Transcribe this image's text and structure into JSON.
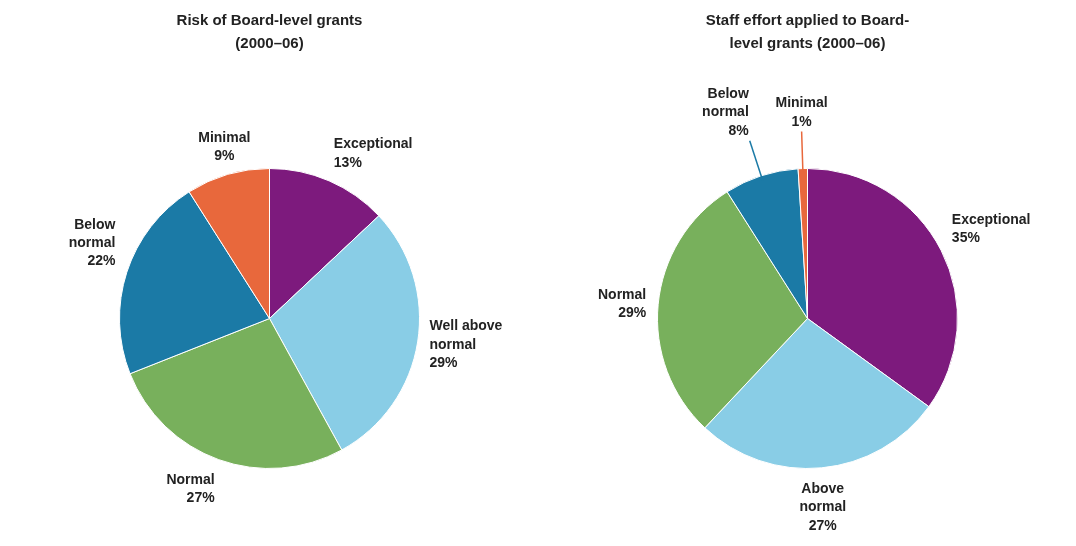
{
  "chart_data": [
    {
      "type": "pie",
      "title": "Risk of Board-level grants\n(2000–06)",
      "categories": [
        "Exceptional",
        "Well above normal",
        "Normal",
        "Below normal",
        "Minimal"
      ],
      "values": [
        13,
        29,
        27,
        22,
        9
      ],
      "colors": [
        "#7d1a7d",
        "#89cde6",
        "#78b05c",
        "#1b7aa6",
        "#e8683c"
      ],
      "value_labels": [
        "13%",
        "29%",
        "27%",
        "22%",
        "9%"
      ]
    },
    {
      "type": "pie",
      "title": "Staff effort applied to Board-\nlevel grants (2000–06)",
      "categories": [
        "Exceptional",
        "Above normal",
        "Normal",
        "Below normal",
        "Minimal"
      ],
      "values": [
        35,
        27,
        29,
        8,
        1
      ],
      "colors": [
        "#7d1a7d",
        "#89cde6",
        "#78b05c",
        "#1b7aa6",
        "#e8683c"
      ],
      "value_labels": [
        "35%",
        "27%",
        "29%",
        "8%",
        "1%"
      ]
    }
  ]
}
